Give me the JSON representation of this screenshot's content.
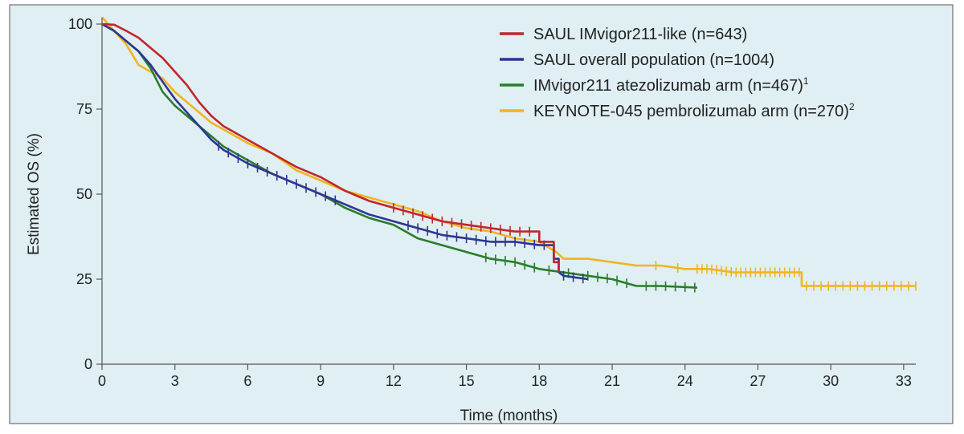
{
  "chart_data": {
    "type": "line",
    "xlabel": "Time (months)",
    "ylabel": "Estimated OS (%)",
    "xlim": [
      0,
      33.5
    ],
    "ylim": [
      0,
      100
    ],
    "xticks": [
      0,
      3,
      6,
      9,
      12,
      15,
      18,
      21,
      24,
      27,
      30,
      33
    ],
    "yticks": [
      0,
      25,
      50,
      75,
      100
    ],
    "grid": false,
    "legend_position": "top-right",
    "colors": {
      "background": "#dfeff3",
      "border": "#555555",
      "axis": "#555555"
    },
    "series": [
      {
        "name": "SAUL IMvigor211-like (n=643)",
        "superscript": "",
        "color": "#c0262d",
        "points": [
          [
            0,
            100
          ],
          [
            0.5,
            99.8
          ],
          [
            1,
            98
          ],
          [
            1.5,
            96
          ],
          [
            2,
            93
          ],
          [
            2.5,
            90
          ],
          [
            3,
            86
          ],
          [
            3.5,
            82
          ],
          [
            4,
            77
          ],
          [
            4.5,
            73
          ],
          [
            5,
            70
          ],
          [
            5.5,
            68
          ],
          [
            6,
            66
          ],
          [
            7,
            62
          ],
          [
            8,
            58
          ],
          [
            9,
            55
          ],
          [
            10,
            51
          ],
          [
            11,
            48
          ],
          [
            12,
            46
          ],
          [
            13,
            44
          ],
          [
            14,
            42
          ],
          [
            15,
            41
          ],
          [
            16,
            40
          ],
          [
            17,
            39
          ],
          [
            18,
            39
          ],
          [
            18,
            36
          ],
          [
            18.6,
            36
          ],
          [
            18.6,
            30
          ],
          [
            18.8,
            30
          ],
          [
            18.8,
            27
          ]
        ],
        "censor_x": [
          12,
          12.4,
          12.8,
          13.2,
          13.6,
          14,
          14.4,
          14.8,
          15.2,
          15.6,
          16,
          16.4,
          16.8,
          17.2,
          17.6
        ]
      },
      {
        "name": "SAUL overall population (n=1004)",
        "superscript": "",
        "color": "#2f3592",
        "points": [
          [
            0,
            100
          ],
          [
            0.5,
            98
          ],
          [
            1,
            95
          ],
          [
            1.5,
            92
          ],
          [
            2,
            88
          ],
          [
            2.5,
            83
          ],
          [
            3,
            78
          ],
          [
            3.5,
            74
          ],
          [
            4,
            70
          ],
          [
            4.5,
            66
          ],
          [
            5,
            63
          ],
          [
            5.5,
            61
          ],
          [
            6,
            59
          ],
          [
            7,
            56
          ],
          [
            8,
            53
          ],
          [
            9,
            50
          ],
          [
            10,
            47
          ],
          [
            11,
            44
          ],
          [
            12,
            42
          ],
          [
            13,
            40
          ],
          [
            14,
            38
          ],
          [
            15,
            37
          ],
          [
            16,
            36
          ],
          [
            17,
            36
          ],
          [
            18,
            35
          ],
          [
            18.6,
            35
          ],
          [
            18.6,
            31
          ],
          [
            18.8,
            31
          ],
          [
            18.8,
            27
          ],
          [
            19,
            26
          ],
          [
            20,
            25
          ]
        ],
        "censor_x": [
          4.8,
          5.2,
          5.6,
          6,
          6.4,
          6.8,
          7.2,
          7.6,
          8,
          8.4,
          8.8,
          9.2,
          9.6,
          12.6,
          13,
          13.4,
          13.8,
          14.2,
          14.6,
          15,
          15.4,
          15.8,
          16.2,
          16.6,
          17,
          17.4,
          17.8,
          18.2,
          19,
          19.4,
          19.8
        ]
      },
      {
        "name": "IMvigor211 atezolizumab arm (n=467)",
        "superscript": "1",
        "color": "#2a7d2a",
        "points": [
          [
            0,
            100
          ],
          [
            0.5,
            98
          ],
          [
            1,
            95
          ],
          [
            1.5,
            92
          ],
          [
            2,
            87
          ],
          [
            2.5,
            80
          ],
          [
            3,
            76
          ],
          [
            3.5,
            73
          ],
          [
            4,
            70
          ],
          [
            4.5,
            67
          ],
          [
            5,
            64
          ],
          [
            5.5,
            62
          ],
          [
            6,
            60
          ],
          [
            7,
            56
          ],
          [
            8,
            53
          ],
          [
            9,
            50
          ],
          [
            10,
            46
          ],
          [
            11,
            43
          ],
          [
            12,
            41
          ],
          [
            13,
            37
          ],
          [
            14,
            35
          ],
          [
            15,
            33
          ],
          [
            16,
            31
          ],
          [
            17,
            30
          ],
          [
            18,
            28
          ],
          [
            19,
            27
          ],
          [
            20,
            26
          ],
          [
            21,
            25
          ],
          [
            22,
            23
          ],
          [
            23,
            23
          ],
          [
            24.5,
            22.5
          ]
        ],
        "censor_x": [
          15.8,
          16.2,
          16.6,
          17,
          17.4,
          17.8,
          18.4,
          19.2,
          20,
          20.4,
          20.8,
          21.2,
          21.6,
          22.4,
          22.8,
          23.2,
          23.6,
          24,
          24.4
        ]
      },
      {
        "name": "KEYNOTE-045 pembrolizumab arm (n=270)",
        "superscript": "2",
        "color": "#f2b41e",
        "points": [
          [
            0,
            102
          ],
          [
            0.5,
            98
          ],
          [
            1,
            94
          ],
          [
            1.5,
            88
          ],
          [
            2,
            86
          ],
          [
            2.5,
            84
          ],
          [
            3,
            80
          ],
          [
            3.5,
            77
          ],
          [
            4,
            74
          ],
          [
            4.5,
            71
          ],
          [
            5,
            69
          ],
          [
            5.5,
            67
          ],
          [
            6,
            65
          ],
          [
            7,
            62
          ],
          [
            8,
            57
          ],
          [
            9,
            54
          ],
          [
            10,
            51
          ],
          [
            11,
            49
          ],
          [
            12,
            47
          ],
          [
            13,
            45
          ],
          [
            14,
            42
          ],
          [
            15,
            40
          ],
          [
            16,
            39
          ],
          [
            17,
            37
          ],
          [
            18,
            36
          ],
          [
            18.7,
            33
          ],
          [
            19,
            31
          ],
          [
            20,
            31
          ],
          [
            21,
            30
          ],
          [
            22,
            29
          ],
          [
            23,
            29
          ],
          [
            24,
            28
          ],
          [
            25,
            28
          ],
          [
            26,
            27
          ],
          [
            27,
            27
          ],
          [
            28,
            27
          ],
          [
            28.8,
            27
          ],
          [
            28.8,
            23
          ],
          [
            30,
            23
          ],
          [
            31,
            23
          ],
          [
            32,
            23
          ],
          [
            33.5,
            23
          ]
        ],
        "censor_x": [
          22.8,
          23.7,
          24.5,
          24.7,
          24.9,
          25.1,
          25.3,
          25.5,
          25.7,
          25.9,
          26.1,
          26.3,
          26.5,
          26.7,
          26.9,
          27.1,
          27.3,
          27.5,
          27.7,
          27.9,
          28.1,
          28.3,
          28.5,
          28.7,
          29,
          29.3,
          29.6,
          29.9,
          30.2,
          30.5,
          30.8,
          31.1,
          31.4,
          31.7,
          32,
          32.3,
          32.6,
          32.9,
          33.2,
          33.5
        ]
      }
    ]
  }
}
